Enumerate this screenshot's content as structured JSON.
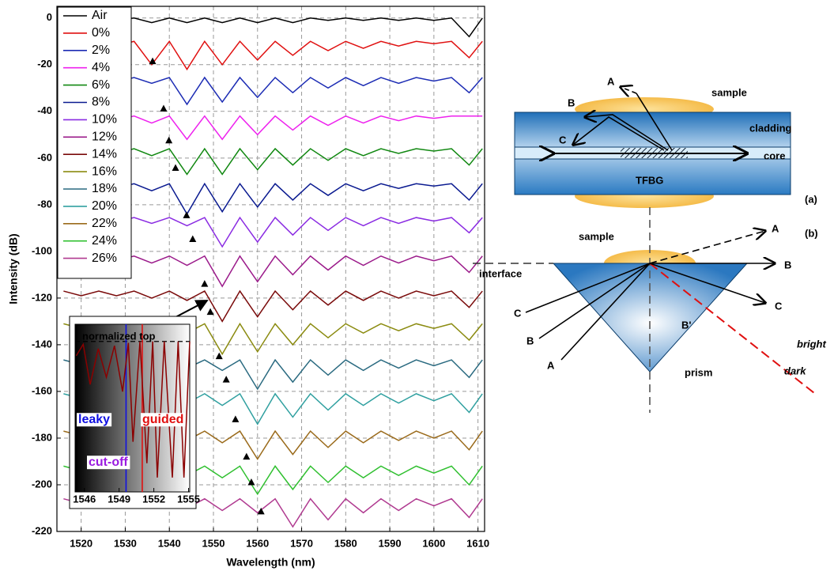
{
  "chart_data": [
    {
      "type": "line",
      "xlabel": "Wavelength (nm)",
      "ylabel": "Intensity (dB)",
      "xlim": [
        1514.5,
        1611.5
      ],
      "xticks": [
        1520,
        1530,
        1540,
        1550,
        1560,
        1570,
        1580,
        1590,
        1600,
        1610
      ],
      "ylim": [
        -220,
        5
      ],
      "yticks": [
        -220,
        -200,
        -180,
        -160,
        -140,
        -120,
        -100,
        -80,
        -60,
        -40,
        -20,
        0
      ],
      "grid": true,
      "legend": "upper left",
      "x": [
        1516,
        1520,
        1524,
        1528,
        1532,
        1536,
        1540,
        1544,
        1548,
        1552,
        1556,
        1560,
        1564,
        1568,
        1572,
        1576,
        1580,
        1584,
        1588,
        1592,
        1596,
        1600,
        1604,
        1608,
        1611
      ],
      "series": [
        {
          "name": "Air",
          "color": "#000000",
          "values": [
            0,
            -1,
            0,
            -1,
            0,
            -2,
            0,
            -2,
            0,
            -2,
            0,
            -2,
            0,
            -2,
            0,
            -1,
            0,
            -1,
            0,
            -1,
            0,
            -1,
            0,
            -8,
            0
          ]
        },
        {
          "name": "0%",
          "color": "#e01010",
          "values": [
            -10,
            -12,
            -10,
            -12,
            -10,
            -20,
            -10,
            -22,
            -10,
            -20,
            -10,
            -18,
            -10,
            -16,
            -10,
            -14,
            -10,
            -13,
            -10,
            -12,
            -10,
            -11,
            -10,
            -17,
            -10
          ]
        },
        {
          "name": "2%",
          "color": "#1c2cb4",
          "values": [
            -25.5,
            -27.5,
            -25.5,
            -27.5,
            -25.5,
            -28,
            -25.5,
            -37,
            -25.5,
            -36,
            -25.5,
            -34,
            -25.5,
            -32,
            -25.5,
            -30,
            -25.5,
            -29,
            -25.5,
            -28,
            -25.5,
            -27,
            -25.5,
            -32,
            -25.5
          ]
        },
        {
          "name": "4%",
          "color": "#ee22ee",
          "values": [
            -42,
            -44,
            -42,
            -44,
            -42,
            -45,
            -42,
            -52,
            -42,
            -52,
            -42,
            -50,
            -42,
            -48,
            -42,
            -46,
            -42,
            -45,
            -42,
            -44,
            -42,
            -43,
            -42,
            -42,
            -42
          ]
        },
        {
          "name": "6%",
          "color": "#118811",
          "values": [
            -56,
            -58,
            -56,
            -58,
            -56,
            -59,
            -56,
            -67,
            -56,
            -67,
            -56,
            -65,
            -56,
            -63,
            -56,
            -61,
            -56,
            -59,
            -56,
            -58,
            -56,
            -57,
            -56,
            -63,
            -56
          ]
        },
        {
          "name": "8%",
          "color": "#0a1a90",
          "values": [
            -71,
            -73,
            -71,
            -73,
            -71,
            -74,
            -71,
            -84,
            -71,
            -83,
            -71,
            -81,
            -71,
            -78,
            -71,
            -76,
            -71,
            -74,
            -71,
            -73,
            -71,
            -72,
            -71,
            -78,
            -71
          ]
        },
        {
          "name": "10%",
          "color": "#8a2be2",
          "values": [
            -85.5,
            -87.5,
            -85.5,
            -87.5,
            -85.5,
            -88,
            -85.5,
            -89,
            -85.5,
            -98,
            -85.5,
            -96,
            -85.5,
            -93,
            -85.5,
            -91,
            -85.5,
            -89,
            -85.5,
            -88,
            -85.5,
            -87,
            -85.5,
            -92,
            -85.5
          ]
        },
        {
          "name": "12%",
          "color": "#9b1a8a",
          "values": [
            -102,
            -104,
            -102,
            -104,
            -102,
            -105,
            -102,
            -106,
            -102,
            -115,
            -102,
            -113,
            -102,
            -110,
            -102,
            -108,
            -102,
            -106,
            -102,
            -105,
            -102,
            -104,
            -102,
            -109,
            -102
          ]
        },
        {
          "name": "14%",
          "color": "#7a0a0a",
          "values": [
            -117,
            -119,
            -117,
            -119,
            -117,
            -120,
            -117,
            -121,
            -117,
            -130,
            -117,
            -128,
            -117,
            -125,
            -117,
            -123,
            -117,
            -121,
            -117,
            -120,
            -117,
            -119,
            -117,
            -124,
            -117
          ]
        },
        {
          "name": "16%",
          "color": "#8b8b10",
          "values": [
            -131,
            -133,
            -131,
            -133,
            -131,
            -134,
            -131,
            -135,
            -131,
            -144,
            -131,
            -143,
            -131,
            -140,
            -131,
            -137,
            -131,
            -135,
            -131,
            -134,
            -131,
            -133,
            -131,
            -138,
            -131
          ]
        },
        {
          "name": "18%",
          "color": "#2a6a80",
          "values": [
            -146.5,
            -148.5,
            -146.5,
            -148.5,
            -146.5,
            -149,
            -146.5,
            -150,
            -146.5,
            -151,
            -146.5,
            -159,
            -146.5,
            -156,
            -146.5,
            -153,
            -146.5,
            -151,
            -146.5,
            -150,
            -146.5,
            -149,
            -146.5,
            -154,
            -146.5
          ]
        },
        {
          "name": "20%",
          "color": "#30a0a0",
          "values": [
            -161,
            -163,
            -161,
            -163,
            -161,
            -164,
            -161,
            -165,
            -161,
            -166,
            -161,
            -174,
            -161,
            -171,
            -161,
            -168,
            -161,
            -166,
            -161,
            -165,
            -161,
            -164,
            -161,
            -169,
            -161
          ]
        },
        {
          "name": "22%",
          "color": "#9a6a1a",
          "values": [
            -177,
            -179,
            -177,
            -179,
            -177,
            -180,
            -177,
            -181,
            -177,
            -182,
            -177,
            -189,
            -177,
            -187,
            -177,
            -184,
            -177,
            -182,
            -177,
            -181,
            -177,
            -180,
            -177,
            -185,
            -177
          ]
        },
        {
          "name": "24%",
          "color": "#30c030",
          "values": [
            -192,
            -194,
            -192,
            -194,
            -192,
            -195,
            -192,
            -196,
            -192,
            -197,
            -192,
            -204,
            -192,
            -202,
            -192,
            -199,
            -192,
            -197,
            -192,
            -196,
            -192,
            -195,
            -192,
            -200,
            -192
          ]
        },
        {
          "name": "26%",
          "color": "#b03a90",
          "values": [
            -206,
            -208,
            -206,
            -208,
            -206,
            -209,
            -206,
            -210,
            -206,
            -211,
            -206,
            -212,
            -206,
            -218,
            -206,
            -215,
            -206,
            -212,
            -206,
            -211,
            -206,
            -209,
            -206,
            -214,
            -206
          ]
        }
      ],
      "markers": {
        "x": [
          1536.2,
          1538.7,
          1539.9,
          1541.4,
          1543.9,
          1545.3,
          1548.0,
          1549.3,
          1551.3,
          1552.9,
          1555.0,
          1557.5,
          1558.6,
          1560.8
        ],
        "y": [
          -18.6,
          -38.9,
          -52.5,
          -64.3,
          -84.6,
          -94.8,
          -114,
          -126,
          -145,
          -155,
          -172,
          -188,
          -199,
          -211.5
        ]
      }
    },
    {
      "type": "line",
      "xlim": [
        1545.2,
        1555.1
      ],
      "xticks": [
        1546,
        1549,
        1552,
        1555
      ],
      "ylim": [
        -1.05,
        0.12
      ],
      "hline": 0,
      "x": [
        1545.3,
        1545.9,
        1546.5,
        1547.2,
        1547.9,
        1548.6,
        1549.3,
        1549.8,
        1550.2,
        1550.8,
        1551.4,
        1551.9,
        1552.3,
        1552.9,
        1553.6,
        1554.1,
        1554.6,
        1555.1
      ],
      "series": [
        {
          "color": "#8b0000",
          "values": [
            -0.1,
            -0.02,
            -0.3,
            -0.05,
            -0.25,
            -0.03,
            -0.35,
            -0.01,
            -0.7,
            0,
            -0.85,
            0,
            -0.95,
            0,
            -0.95,
            0,
            -0.95,
            0
          ]
        }
      ],
      "cutoff_lines": [
        {
          "x": 1549.6,
          "color": "#1010e0"
        },
        {
          "x": 1551.0,
          "color": "#e01010"
        }
      ],
      "annotations": [
        {
          "text": "normalized top",
          "color": "#000000"
        },
        {
          "text": "leaky",
          "color": "#1010e0"
        },
        {
          "text": "guided",
          "color": "#e01010"
        },
        {
          "text": "cut-off",
          "color": "#9a1ae0"
        }
      ]
    }
  ],
  "diagrams": {
    "a": {
      "label": "(a)",
      "sample": "sample",
      "cladding": "cladding",
      "core": "core",
      "fiber": "TFBG",
      "rays": [
        "A",
        "B",
        "C"
      ]
    },
    "b": {
      "label": "(b)",
      "sample": "sample",
      "interface": "interface",
      "prism": "prism",
      "rays": [
        "A",
        "B",
        "C",
        "A",
        "B",
        "C",
        "B'"
      ],
      "bright": "bright",
      "dark": "dark"
    }
  }
}
